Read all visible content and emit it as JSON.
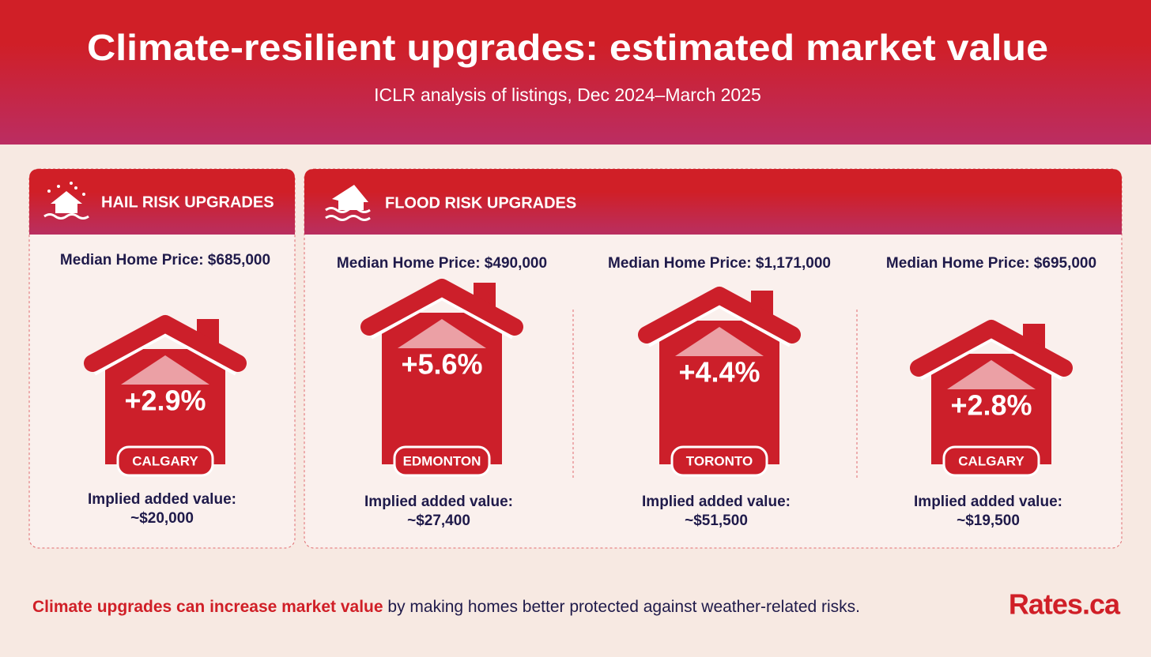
{
  "header": {
    "title": "Climate-resilient upgrades: estimated market value",
    "subtitle": "ICLR analysis of listings, Dec 2024–March 2025"
  },
  "panels": [
    {
      "title": "HAIL RISK UPGRADES",
      "items": [
        {
          "median": "Median Home Price: $685,000",
          "change": "+2.9%",
          "city": "CALGARY",
          "implied_label": "Implied added value:",
          "implied_value": "~$20,000"
        }
      ]
    },
    {
      "title": "FLOOD RISK UPGRADES",
      "items": [
        {
          "median": "Median Home Price: $490,000",
          "change": "+5.6%",
          "city": "EDMONTON",
          "implied_label": "Implied added value:",
          "implied_value": "~$27,400"
        },
        {
          "median": "Median Home Price: $1,171,000",
          "change": "+4.4%",
          "city": "TORONTO",
          "implied_label": "Implied added value:",
          "implied_value": "~$51,500"
        },
        {
          "median": "Median Home Price: $695,000",
          "change": "+2.8%",
          "city": "CALGARY",
          "implied_label": "Implied added value:",
          "implied_value": "~$19,500"
        }
      ]
    }
  ],
  "footer": {
    "emphasis": "Climate upgrades can increase market value",
    "text": "by making homes better protected against weather-related risks.",
    "logo": "Rates.ca"
  }
}
